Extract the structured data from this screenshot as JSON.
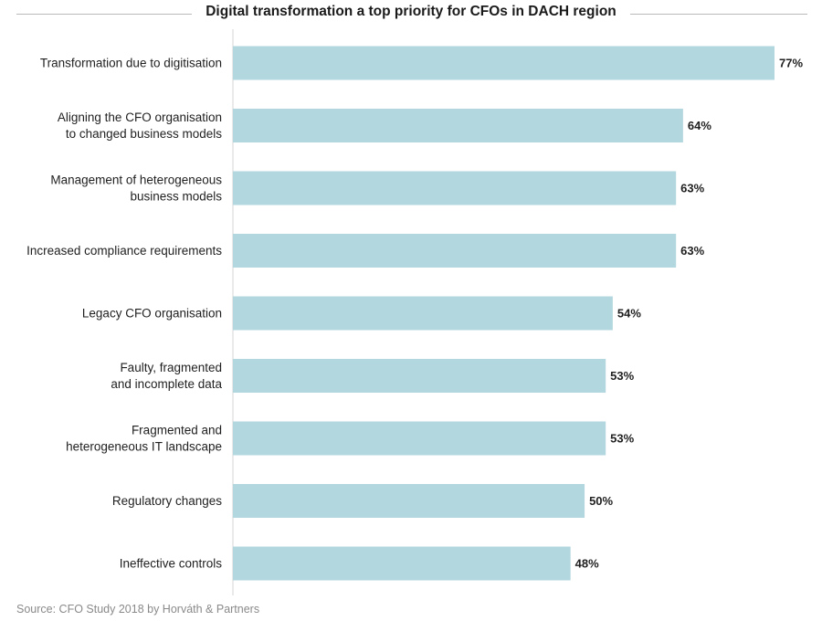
{
  "chart_data": {
    "type": "bar",
    "orientation": "horizontal",
    "title": "Digital transformation a top priority for CFOs in DACH region",
    "categories": [
      "Transformation due to digitisation",
      "Aligning the CFO organisation to changed business models",
      "Management of heterogeneous business models",
      "Increased compliance requirements",
      "Legacy CFO organisation",
      "Faulty, fragmented and incomplete data",
      "Fragmented and heterogeneous IT landscape",
      "Regulatory changes",
      "Ineffective controls"
    ],
    "category_lines": [
      [
        "Transformation due to digitisation"
      ],
      [
        "Aligning the CFO organisation",
        "to changed business models"
      ],
      [
        "Management of heterogeneous",
        "business models"
      ],
      [
        "Increased compliance requirements"
      ],
      [
        "Legacy CFO organisation"
      ],
      [
        "Faulty, fragmented",
        "and incomplete data"
      ],
      [
        "Fragmented and",
        "heterogeneous IT landscape"
      ],
      [
        "Regulatory changes"
      ],
      [
        "Ineffective controls"
      ]
    ],
    "values": [
      77,
      64,
      63,
      63,
      54,
      53,
      53,
      50,
      48
    ],
    "value_labels": [
      "77%",
      "64%",
      "63%",
      "63%",
      "54%",
      "53%",
      "53%",
      "50%",
      "48%"
    ],
    "xlim": [
      0,
      77
    ],
    "xlabel": "",
    "ylabel": "",
    "grid": false,
    "bar_color": "#b3d7de",
    "axis_color": "#d6d6d6"
  },
  "footer": {
    "source": "Source: CFO Study 2018 by Horváth & Partners"
  }
}
